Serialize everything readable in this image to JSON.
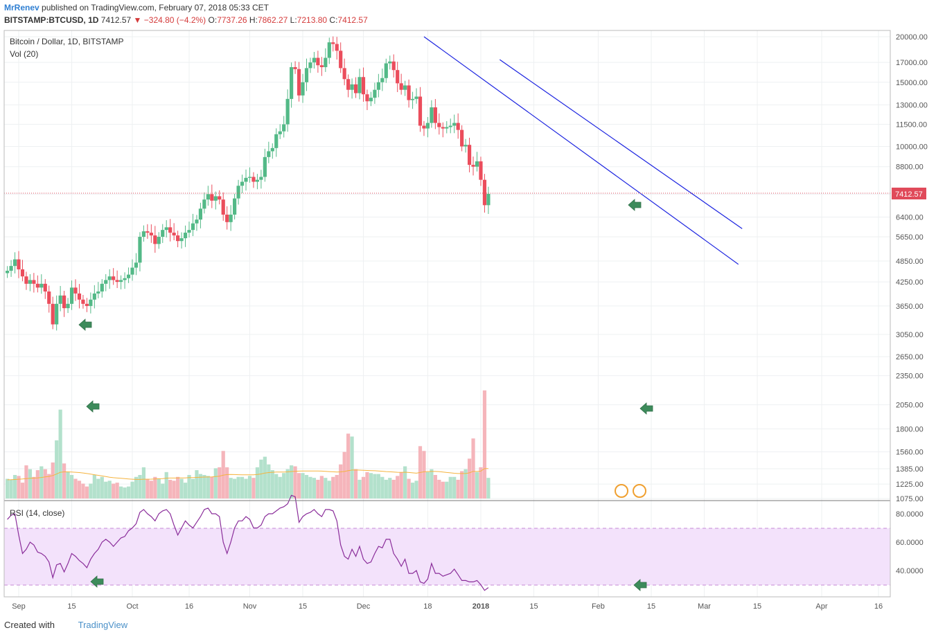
{
  "header": {
    "author": "MrRenev",
    "published_text": "published on TradingView.com, February 07, 2018 05:33 CET",
    "symbol": "BITSTAMP:BTCUSD, 1D",
    "last": "7412.57",
    "change": "−324.80 (−4.2%)",
    "o_label": "O:",
    "o": "7737.26",
    "h_label": "H:",
    "h": "7862.27",
    "l_label": "L:",
    "l": "7213.80",
    "c_label": "C:",
    "c": "7412.57"
  },
  "legend": {
    "main": "Bitcoin / Dollar, 1D, BITSTAMP",
    "volume": "Vol (20)",
    "rsi": "RSI (14, close)"
  },
  "footer": {
    "created_with": "Created with",
    "brand": "TradingView"
  },
  "colors": {
    "up": "#53b987",
    "down": "#eb4d5c",
    "up_vol": "#b3e1cc",
    "down_vol": "#f5b5bb",
    "trendline": "#1a22e0",
    "ma": "#f5b33d",
    "rsi_line": "#8a2d9a",
    "rsi_band": "#f3e2fb",
    "arrow": "#3d8b5b",
    "price_line": "#e04a5a"
  },
  "chart_data": {
    "type": "candlestick",
    "price_axis_labels": [
      "20000.00",
      "17000.00",
      "15000.00",
      "13000.00",
      "11500.00",
      "10000.00",
      "8800.00",
      "7400.00",
      "6400.00",
      "5650.00",
      "4850.00",
      "4250.00",
      "3650.00",
      "3050.00",
      "2650.00",
      "2350.00",
      "2050.00",
      "1800.00",
      "1560.00",
      "1385.00",
      "1225.00",
      "1075.00"
    ],
    "price_ticks": [
      20000,
      17000,
      15000,
      13000,
      11500,
      10000,
      8800,
      7400,
      6400,
      5650,
      4850,
      4250,
      3650,
      3050,
      2650,
      2350,
      2050,
      1800,
      1560,
      1385,
      1225,
      1075
    ],
    "last_price_label": "7412.57",
    "rsi_axis_labels": [
      "80.0000",
      "60.0000",
      "40.0000"
    ],
    "rsi_ticks": [
      80,
      60,
      40
    ],
    "x_tick_labels": [
      "Sep",
      "15",
      "Oct",
      "16",
      "Nov",
      "15",
      "Dec",
      "18",
      "2018",
      "15",
      "Feb",
      "15",
      "Mar",
      "15",
      "Apr",
      "16"
    ],
    "x_tick_dates": [
      "2017-09-01",
      "2017-09-15",
      "2017-10-01",
      "2017-10-16",
      "2017-11-01",
      "2017-11-15",
      "2017-12-01",
      "2017-12-18",
      "2018-01-01",
      "2018-01-15",
      "2018-02-01",
      "2018-02-15",
      "2018-03-01",
      "2018-03-15",
      "2018-04-01",
      "2018-04-16"
    ],
    "first_date": "2017-08-29",
    "close": [
      4560,
      4700,
      4900,
      4600,
      4400,
      4200,
      4300,
      4200,
      4100,
      4200,
      4000,
      3700,
      3250,
      3700,
      3900,
      3600,
      3700,
      4100,
      3950,
      3800,
      3700,
      3650,
      3800,
      3950,
      4000,
      4200,
      4300,
      4400,
      4300,
      4250,
      4300,
      4350,
      4450,
      4650,
      4800,
      5650,
      5850,
      5800,
      5700,
      5400,
      5650,
      5900,
      6000,
      5800,
      5700,
      5500,
      5600,
      5800,
      5900,
      6150,
      6300,
      6750,
      7150,
      7400,
      7100,
      7300,
      7150,
      6500,
      6200,
      6500,
      7200,
      7800,
      8000,
      8200,
      8250,
      8000,
      8100,
      8250,
      9350,
      9700,
      9900,
      10800,
      11000,
      11500,
      13500,
      16500,
      16300,
      13800,
      15000,
      16400,
      17000,
      17500,
      16700,
      16500,
      17500,
      19300,
      19100,
      18300,
      16400,
      15300,
      14300,
      14800,
      14000,
      15500,
      13900,
      13300,
      13600,
      14300,
      15000,
      15400,
      16900,
      17100,
      16200,
      14900,
      14300,
      14700,
      13400,
      13500,
      13700,
      11400,
      11200,
      11600,
      12800,
      11600,
      11300,
      11200,
      11300,
      11400,
      11600,
      11100,
      10000,
      10100,
      8900,
      8800,
      9100,
      8100,
      6900,
      7412
    ],
    "volume": [
      1280,
      1270,
      1320,
      1310,
      1240,
      1420,
      1380,
      1300,
      1370,
      1410,
      1380,
      1330,
      1450,
      1680,
      2000,
      1440,
      1350,
      1320,
      1280,
      1260,
      1230,
      1200,
      1230,
      1320,
      1280,
      1300,
      1250,
      1260,
      1230,
      1240,
      1200,
      1190,
      1200,
      1250,
      1300,
      1320,
      1400,
      1280,
      1260,
      1300,
      1280,
      1230,
      1350,
      1270,
      1260,
      1300,
      1280,
      1240,
      1320,
      1280,
      1370,
      1330,
      1320,
      1310,
      1300,
      1390,
      1400,
      1570,
      1400,
      1290,
      1280,
      1300,
      1300,
      1280,
      1310,
      1290,
      1400,
      1480,
      1510,
      1430,
      1370,
      1330,
      1300,
      1340,
      1380,
      1420,
      1410,
      1340,
      1340,
      1320,
      1300,
      1290,
      1270,
      1310,
      1290,
      1260,
      1300,
      1320,
      1430,
      1560,
      1750,
      1720,
      1380,
      1270,
      1300,
      1350,
      1340,
      1330,
      1330,
      1300,
      1270,
      1290,
      1270,
      1310,
      1350,
      1410,
      1280,
      1240,
      1260,
      1620,
      1570,
      1350,
      1380,
      1320,
      1270,
      1250,
      1250,
      1300,
      1300,
      1270,
      1360,
      1380,
      1490,
      1700,
      1350,
      1400,
      2200,
      1290
    ],
    "volume_ma20": [
      1270,
      1271,
      1273,
      1276,
      1278,
      1282,
      1286,
      1288,
      1290,
      1294,
      1300,
      1305,
      1314,
      1330,
      1348,
      1352,
      1352,
      1350,
      1348,
      1345,
      1341,
      1335,
      1329,
      1323,
      1316,
      1310,
      1303,
      1297,
      1292,
      1288,
      1285,
      1282,
      1279,
      1276,
      1274,
      1274,
      1276,
      1276,
      1277,
      1279,
      1281,
      1282,
      1287,
      1288,
      1288,
      1289,
      1290,
      1290,
      1293,
      1293,
      1295,
      1297,
      1298,
      1299,
      1300,
      1304,
      1308,
      1318,
      1324,
      1325,
      1324,
      1323,
      1322,
      1321,
      1321,
      1321,
      1325,
      1331,
      1340,
      1345,
      1348,
      1350,
      1350,
      1350,
      1352,
      1356,
      1359,
      1360,
      1361,
      1362,
      1362,
      1362,
      1361,
      1360,
      1358,
      1355,
      1353,
      1351,
      1352,
      1357,
      1365,
      1371,
      1372,
      1370,
      1368,
      1367,
      1365,
      1364,
      1362,
      1359,
      1355,
      1353,
      1350,
      1348,
      1347,
      1349,
      1346,
      1342,
      1339,
      1346,
      1353,
      1355,
      1357,
      1357,
      1355,
      1351,
      1346,
      1342,
      1338,
      1335,
      1335,
      1335,
      1342,
      1358,
      1357,
      1360,
      1387,
      1386
    ],
    "rsi": [
      76,
      79,
      80,
      65,
      52,
      55,
      60,
      58,
      53,
      52,
      50,
      46,
      35,
      44,
      45,
      39,
      45,
      52,
      50,
      47,
      45,
      42,
      48,
      52,
      55,
      60,
      62,
      60,
      57,
      60,
      63,
      64,
      68,
      70,
      73,
      81,
      83,
      80,
      78,
      75,
      80,
      82,
      83,
      80,
      72,
      65,
      70,
      75,
      72,
      70,
      74,
      78,
      83,
      84,
      80,
      80,
      78,
      60,
      52,
      60,
      70,
      75,
      75,
      78,
      76,
      70,
      70,
      72,
      78,
      80,
      80,
      82,
      84,
      85,
      87,
      93,
      92,
      74,
      78,
      80,
      81,
      83,
      80,
      78,
      83,
      83,
      82,
      75,
      58,
      50,
      48,
      55,
      50,
      57,
      48,
      45,
      46,
      52,
      57,
      56,
      62,
      62,
      52,
      48,
      43,
      48,
      38,
      38,
      40,
      32,
      31,
      34,
      45,
      38,
      38,
      36,
      37,
      38,
      41,
      37,
      33,
      33,
      32,
      32,
      33,
      30,
      26,
      28
    ],
    "trendlines": [
      {
        "from": [
          "2017-12-17",
          20000
        ],
        "to": [
          "2018-03-10",
          4750
        ]
      },
      {
        "from": [
          "2018-01-06",
          17300
        ],
        "to": [
          "2018-03-11",
          5950
        ]
      }
    ]
  }
}
